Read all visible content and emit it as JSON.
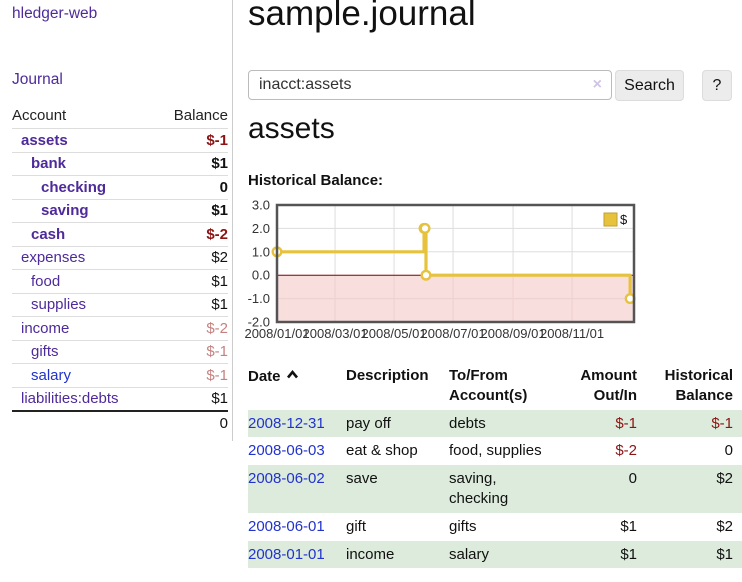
{
  "colors": {
    "purple_link": "#4e2a9a",
    "blue_link": "#2233cc",
    "negative_strong": "#8b1414",
    "negative_soft": "#c5817f",
    "row_stripe": "#dcebdb"
  },
  "sidebar": {
    "brand": "hledger-web",
    "journal_label": "Journal",
    "accounts_table": {
      "headers": [
        "Account",
        "Balance"
      ],
      "rows": [
        {
          "name": "assets",
          "indent": 1,
          "bold": true,
          "balance": "$-1",
          "neg": "strong"
        },
        {
          "name": "bank",
          "indent": 2,
          "bold": true,
          "balance": "$1",
          "neg": "none"
        },
        {
          "name": "checking",
          "indent": 3,
          "bold": true,
          "balance": "0",
          "neg": "none"
        },
        {
          "name": "saving",
          "indent": 3,
          "bold": true,
          "balance": "$1",
          "neg": "none"
        },
        {
          "name": "cash",
          "indent": 2,
          "bold": true,
          "balance": "$-2",
          "neg": "strong"
        },
        {
          "name": "expenses",
          "indent": 1,
          "bold": false,
          "balance": "$2",
          "neg": "none"
        },
        {
          "name": "food",
          "indent": 2,
          "bold": false,
          "balance": "$1",
          "neg": "none"
        },
        {
          "name": "supplies",
          "indent": 2,
          "bold": false,
          "balance": "$1",
          "neg": "none"
        },
        {
          "name": "income",
          "indent": 1,
          "bold": false,
          "balance": "$-2",
          "neg": "soft"
        },
        {
          "name": "gifts",
          "indent": 2,
          "bold": false,
          "balance": "$-1",
          "neg": "soft"
        },
        {
          "name": "salary",
          "indent": 2,
          "bold": false,
          "balance": "$-1",
          "neg": "soft",
          "link": "blue"
        },
        {
          "name": "liabilities:debts",
          "indent": 1,
          "bold": false,
          "balance": "$1",
          "neg": "none"
        }
      ],
      "total": "0"
    }
  },
  "header": {
    "title": "sample.journal"
  },
  "search": {
    "value": "inacct:assets",
    "clear_icon": "×",
    "button_label": "Search",
    "help_label": "?"
  },
  "account_page": {
    "heading": "assets",
    "chart_label": "Historical Balance:"
  },
  "chart_data": {
    "type": "line",
    "step": true,
    "title": "Historical Balance",
    "series": [
      {
        "name": "$",
        "color": "#e6c23d",
        "points": [
          [
            "2008-01-01",
            1
          ],
          [
            "2008-06-01",
            2
          ],
          [
            "2008-06-02",
            2
          ],
          [
            "2008-06-03",
            0
          ],
          [
            "2008-12-31",
            -1
          ]
        ]
      }
    ],
    "x_ticks": [
      "2008-01-01",
      "2008-03-01",
      "2008-05-01",
      "2008-07-01",
      "2008-09-01",
      "2008-11-01"
    ],
    "y_ticks": [
      3.0,
      2.0,
      1.0,
      0.0,
      -1.0,
      -2.0
    ],
    "xlim": [
      "2008-01-01",
      "2009-01-04"
    ],
    "ylim": [
      -2,
      3
    ],
    "grid": true,
    "legend_position": "top-right",
    "legend": "$",
    "negative_region_color": "#f6caca",
    "zero_line_color": "#8b0000"
  },
  "transactions": {
    "headers": {
      "date": "Date",
      "description": "Description",
      "accounts": "To/From Account(s)",
      "amount": "Amount Out/In",
      "balance": "Historical Balance"
    },
    "sort_icon": "caret-up",
    "rows": [
      {
        "date": "2008-12-31",
        "description": "pay off",
        "accounts": "debts",
        "amount": "$-1",
        "amount_negative": true,
        "balance": "$-1",
        "balance_negative": true
      },
      {
        "date": "2008-06-03",
        "description": "eat & shop",
        "accounts": "food, supplies",
        "amount": "$-2",
        "amount_negative": true,
        "balance": "0",
        "balance_negative": false
      },
      {
        "date": "2008-06-02",
        "description": "save",
        "accounts": "saving, checking",
        "amount": "0",
        "amount_negative": false,
        "balance": "$2",
        "balance_negative": false
      },
      {
        "date": "2008-06-01",
        "description": "gift",
        "accounts": "gifts",
        "amount": "$1",
        "amount_negative": false,
        "balance": "$2",
        "balance_negative": false
      },
      {
        "date": "2008-01-01",
        "description": "income",
        "accounts": "salary",
        "amount": "$1",
        "amount_negative": false,
        "balance": "$1",
        "balance_negative": false
      }
    ]
  }
}
